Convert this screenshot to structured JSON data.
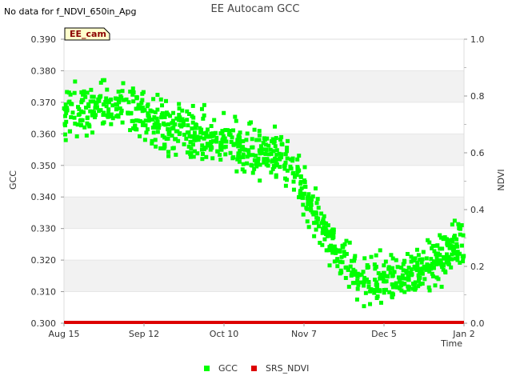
{
  "chart_data": {
    "type": "scatter",
    "title": "EE Autocam GCC",
    "note": "No data for f_NDVI_650in_Apg",
    "site_tag": "EE_cam",
    "xlabel": "Time",
    "ylabel": "GCC",
    "y2label": "NDVI",
    "x_ticks": [
      "Aug 15",
      "Sep 12",
      "Oct 10",
      "Nov 7",
      "Dec 5",
      "Jan 2"
    ],
    "x_tick_days": [
      0,
      28,
      56,
      84,
      112,
      140
    ],
    "xlim_days": [
      0,
      140
    ],
    "ylim": [
      0.3,
      0.39
    ],
    "y_ticks": [
      "0.300",
      "0.310",
      "0.320",
      "0.330",
      "0.340",
      "0.350",
      "0.360",
      "0.370",
      "0.380",
      "0.390"
    ],
    "y_tick_values": [
      0.3,
      0.31,
      0.32,
      0.33,
      0.34,
      0.35,
      0.36,
      0.37,
      0.38,
      0.39
    ],
    "y2lim": [
      0.0,
      1.0
    ],
    "y2_ticks": [
      "0.0",
      "0.2",
      "0.4",
      "0.6",
      "0.8",
      "1.0"
    ],
    "y2_tick_values": [
      0.0,
      0.2,
      0.4,
      0.6,
      0.8,
      1.0
    ],
    "legend_position": "bottom-center",
    "grid": "alternating horizontal bands",
    "series": [
      {
        "name": "GCC",
        "color": "#00ff00",
        "points_per_day": 7,
        "trend": [
          [
            0,
            0.366
          ],
          [
            7,
            0.368
          ],
          [
            14,
            0.369
          ],
          [
            21,
            0.368
          ],
          [
            28,
            0.365
          ],
          [
            35,
            0.362
          ],
          [
            42,
            0.361
          ],
          [
            49,
            0.359
          ],
          [
            56,
            0.357
          ],
          [
            63,
            0.355
          ],
          [
            70,
            0.354
          ],
          [
            77,
            0.352
          ],
          [
            80,
            0.349
          ],
          [
            84,
            0.342
          ],
          [
            88,
            0.335
          ],
          [
            92,
            0.327
          ],
          [
            96,
            0.322
          ],
          [
            100,
            0.318
          ],
          [
            105,
            0.315
          ],
          [
            110,
            0.314
          ],
          [
            115,
            0.315
          ],
          [
            120,
            0.316
          ],
          [
            125,
            0.318
          ],
          [
            130,
            0.32
          ],
          [
            135,
            0.323
          ],
          [
            140,
            0.325
          ]
        ],
        "spread": 0.006
      },
      {
        "name": "SRS_NDVI",
        "color": "#dd0000",
        "axis": "right",
        "constant_value": 0.0
      }
    ]
  }
}
